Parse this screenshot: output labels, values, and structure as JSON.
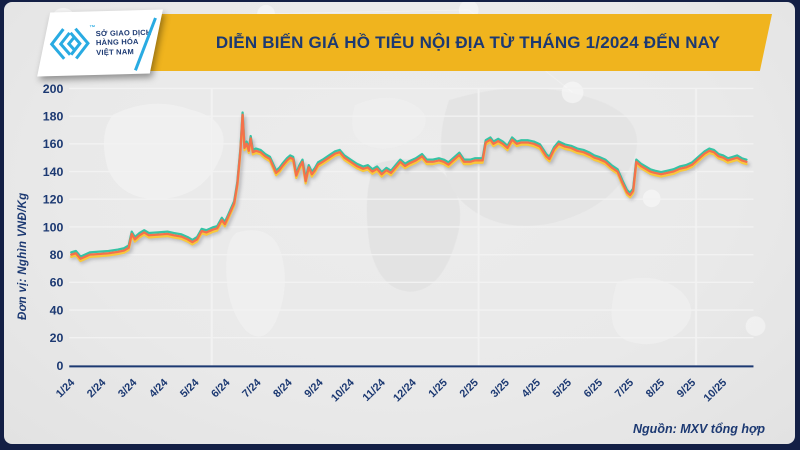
{
  "header": {
    "logo": {
      "line1": "SỞ GIAO DỊCH",
      "line2": "HÀNG HÓA",
      "line3": "VIỆT NAM",
      "trademark": "™"
    },
    "title": "DIỄN BIẾN GIÁ HỒ TIÊU NỘI ĐỊA TỪ THÁNG 1/2024 ĐẾN NAY"
  },
  "footer": {
    "source": "Nguồn: MXV tổng hợp"
  },
  "colors": {
    "frame_navy": "#131F45",
    "navy_text": "#1C3972",
    "banner_gold": "#F0B41E",
    "logo_cyan": "#29ABE2",
    "line_teal": "#35C3A4",
    "line_orange": "#F4714B",
    "line_yellow": "#F8C83C",
    "background": "#E9E9E9"
  },
  "chart_data": {
    "type": "line",
    "title": "DIỄN BIẾN GIÁ HỒ TIÊU NỘI ĐỊA TỪ THÁNG 1/2024 ĐẾN NAY",
    "ylabel": "Đơn vị: Nghìn VNĐ/Kg",
    "ylim": [
      0,
      200
    ],
    "ytick_step": 20,
    "grid": "horizontal",
    "legend": "none",
    "x_tick_labels": [
      "1/24",
      "2/24",
      "3/24",
      "4/24",
      "5/24",
      "6/24",
      "7/24",
      "8/24",
      "9/24",
      "10/24",
      "11/24",
      "12/24",
      "1/25",
      "2/25",
      "3/25",
      "4/25",
      "5/25",
      "6/25",
      "7/25",
      "8/25",
      "9/25",
      "10/25"
    ],
    "series": [
      {
        "name": "duong-gia-teal",
        "color": "#35C3A4",
        "delta": 1.6
      },
      {
        "name": "duong-gia-yellow",
        "color": "#F8C83C",
        "delta": -1.6
      },
      {
        "name": "duong-gia-orange",
        "color": "#F4714B",
        "delta": 0
      }
    ],
    "base_points": [
      [
        0,
        80
      ],
      [
        0.15,
        81
      ],
      [
        0.3,
        77
      ],
      [
        0.45,
        78.5
      ],
      [
        0.6,
        80
      ],
      [
        0.9,
        80.5
      ],
      [
        1.2,
        81
      ],
      [
        1.5,
        82
      ],
      [
        1.7,
        83
      ],
      [
        1.85,
        85
      ],
      [
        1.95,
        95
      ],
      [
        2.05,
        91
      ],
      [
        2.2,
        94
      ],
      [
        2.35,
        96
      ],
      [
        2.5,
        94
      ],
      [
        2.8,
        94.5
      ],
      [
        3.1,
        95
      ],
      [
        3.3,
        94
      ],
      [
        3.55,
        93
      ],
      [
        3.75,
        91
      ],
      [
        3.9,
        89
      ],
      [
        4.05,
        91
      ],
      [
        4.2,
        97
      ],
      [
        4.35,
        96
      ],
      [
        4.55,
        98
      ],
      [
        4.7,
        99
      ],
      [
        4.85,
        105
      ],
      [
        4.95,
        102
      ],
      [
        5.05,
        107
      ],
      [
        5.15,
        112
      ],
      [
        5.25,
        117
      ],
      [
        5.35,
        131
      ],
      [
        5.45,
        155
      ],
      [
        5.52,
        181
      ],
      [
        5.58,
        157
      ],
      [
        5.65,
        160
      ],
      [
        5.72,
        155
      ],
      [
        5.78,
        164
      ],
      [
        5.85,
        154
      ],
      [
        5.95,
        155
      ],
      [
        6.1,
        154
      ],
      [
        6.25,
        151
      ],
      [
        6.4,
        149
      ],
      [
        6.5,
        144
      ],
      [
        6.6,
        139
      ],
      [
        6.7,
        141
      ],
      [
        6.8,
        144
      ],
      [
        6.95,
        148
      ],
      [
        7.05,
        150
      ],
      [
        7.15,
        149
      ],
      [
        7.25,
        137
      ],
      [
        7.35,
        143
      ],
      [
        7.45,
        147
      ],
      [
        7.55,
        133
      ],
      [
        7.65,
        143
      ],
      [
        7.75,
        138
      ],
      [
        7.85,
        141
      ],
      [
        7.95,
        145
      ],
      [
        8.1,
        147
      ],
      [
        8.3,
        150
      ],
      [
        8.5,
        153
      ],
      [
        8.65,
        154
      ],
      [
        8.8,
        150
      ],
      [
        9.0,
        147
      ],
      [
        9.2,
        144
      ],
      [
        9.4,
        142
      ],
      [
        9.55,
        143
      ],
      [
        9.7,
        140
      ],
      [
        9.85,
        142
      ],
      [
        10.0,
        138
      ],
      [
        10.15,
        141
      ],
      [
        10.3,
        139
      ],
      [
        10.45,
        143
      ],
      [
        10.6,
        147
      ],
      [
        10.75,
        144
      ],
      [
        10.9,
        146
      ],
      [
        11.1,
        148
      ],
      [
        11.3,
        151
      ],
      [
        11.45,
        147
      ],
      [
        11.65,
        147
      ],
      [
        11.85,
        148
      ],
      [
        12.0,
        147
      ],
      [
        12.15,
        145
      ],
      [
        12.35,
        149
      ],
      [
        12.5,
        152
      ],
      [
        12.65,
        147
      ],
      [
        12.85,
        147
      ],
      [
        13.0,
        148
      ],
      [
        13.25,
        148
      ],
      [
        13.35,
        161
      ],
      [
        13.5,
        163
      ],
      [
        13.6,
        160
      ],
      [
        13.75,
        162
      ],
      [
        13.9,
        160
      ],
      [
        14.05,
        157
      ],
      [
        14.2,
        163
      ],
      [
        14.35,
        160
      ],
      [
        14.5,
        161
      ],
      [
        14.7,
        161
      ],
      [
        14.9,
        160
      ],
      [
        15.1,
        158
      ],
      [
        15.3,
        151
      ],
      [
        15.4,
        149
      ],
      [
        15.55,
        156
      ],
      [
        15.7,
        160
      ],
      [
        15.9,
        158
      ],
      [
        16.1,
        157
      ],
      [
        16.3,
        155
      ],
      [
        16.5,
        154
      ],
      [
        16.7,
        152
      ],
      [
        16.85,
        150
      ],
      [
        17.0,
        149
      ],
      [
        17.2,
        147
      ],
      [
        17.4,
        143
      ],
      [
        17.6,
        140
      ],
      [
        17.75,
        132
      ],
      [
        17.9,
        125
      ],
      [
        18.0,
        123
      ],
      [
        18.1,
        126
      ],
      [
        18.2,
        147
      ],
      [
        18.35,
        144
      ],
      [
        18.5,
        142
      ],
      [
        18.65,
        140
      ],
      [
        18.8,
        139
      ],
      [
        19.0,
        138
      ],
      [
        19.2,
        139
      ],
      [
        19.4,
        140
      ],
      [
        19.6,
        142
      ],
      [
        19.8,
        143
      ],
      [
        20.0,
        145
      ],
      [
        20.2,
        149
      ],
      [
        20.4,
        153
      ],
      [
        20.55,
        155
      ],
      [
        20.7,
        154
      ],
      [
        20.85,
        151
      ],
      [
        21.0,
        150
      ],
      [
        21.15,
        148
      ],
      [
        21.3,
        149
      ],
      [
        21.45,
        150
      ],
      [
        21.6,
        148
      ],
      [
        21.75,
        147
      ]
    ]
  }
}
